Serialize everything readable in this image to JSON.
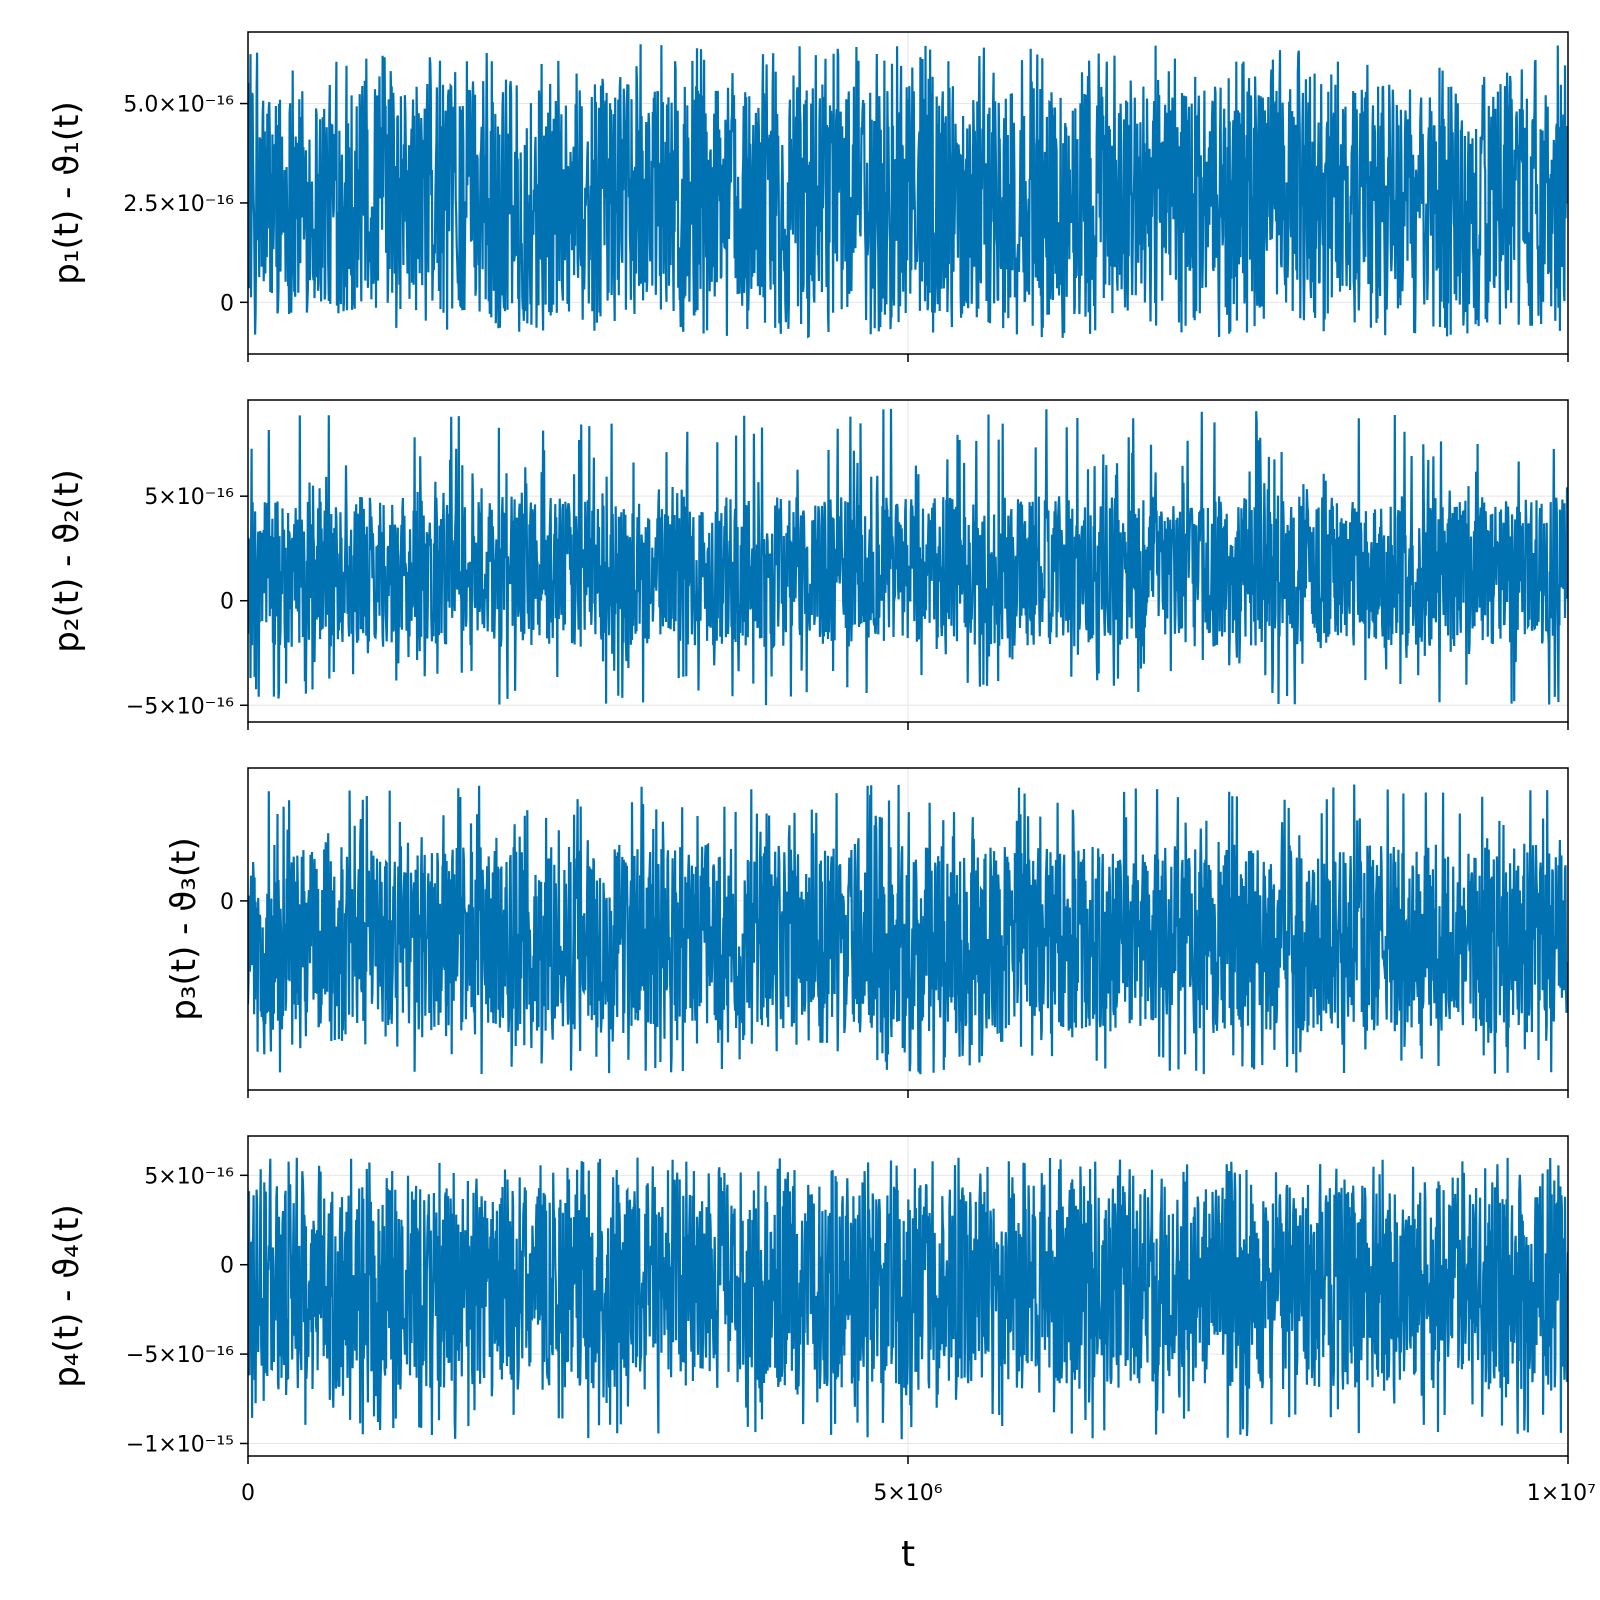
{
  "colors": {
    "series": "#0072b2",
    "grid": "#e6e6e6",
    "frame": "#000000"
  },
  "chart_data": [
    {
      "type": "line",
      "ylabel": "p₁(t) - ϑ₁(t)",
      "xlim": [
        0,
        10000000
      ],
      "ylim": [
        -1.3e-16,
        6.8e-16
      ],
      "yticks": [
        {
          "value": 0,
          "label": "0"
        },
        {
          "value": 2.5e-16,
          "label": "2.5×10⁻¹⁶"
        },
        {
          "value": 5e-16,
          "label": "5.0×10⁻¹⁶"
        }
      ],
      "series": [
        {
          "dense_noise": true,
          "min": -9e-17,
          "max": 6.5e-16,
          "typical_low": -3e-17,
          "typical_high": 5.5e-16
        }
      ],
      "grid": true
    },
    {
      "type": "line",
      "ylabel": "p₂(t) - ϑ₂(t)",
      "xlim": [
        0,
        10000000
      ],
      "ylim": [
        -5.8e-16,
        9.6e-16
      ],
      "yticks": [
        {
          "value": -5e-16,
          "label": "−5×10⁻¹⁶"
        },
        {
          "value": 0,
          "label": "0"
        },
        {
          "value": 5e-16,
          "label": "5×10⁻¹⁶"
        }
      ],
      "series": [
        {
          "dense_noise": true,
          "min": -5e-16,
          "max": 9.2e-16,
          "typical_low": -2.2e-16,
          "typical_high": 5e-16
        }
      ],
      "grid": true
    },
    {
      "type": "line",
      "ylabel": "p₃(t) - ϑ₃(t)",
      "xlim": [
        0,
        10000000
      ],
      "ylim": [
        -1.85e-15,
        1.3e-15
      ],
      "yticks": [
        {
          "value": 0,
          "label": "0"
        }
      ],
      "series": [
        {
          "dense_noise": true,
          "min": -1.72e-15,
          "max": 1.15e-15,
          "typical_low": -1.3e-15,
          "typical_high": 5.5e-16
        }
      ],
      "grid": true
    },
    {
      "type": "line",
      "ylabel": "p₄(t) - ϑ₄(t)",
      "xlabel": "t",
      "xlim": [
        0,
        10000000
      ],
      "ylim": [
        -1.07e-15,
        7.2e-16
      ],
      "yticks": [
        {
          "value": -1e-15,
          "label": "−1×10⁻¹⁵"
        },
        {
          "value": -5e-16,
          "label": "−5×10⁻¹⁶"
        },
        {
          "value": 0,
          "label": "0"
        },
        {
          "value": 5e-16,
          "label": "5×10⁻¹⁶"
        }
      ],
      "xticks": [
        {
          "value": 0,
          "label": "0"
        },
        {
          "value": 5000000,
          "label": "5×10⁶"
        },
        {
          "value": 10000000,
          "label": "1×10⁷"
        }
      ],
      "series": [
        {
          "dense_noise": true,
          "min": -9.8e-16,
          "max": 6e-16,
          "typical_low": -7e-16,
          "typical_high": 4.5e-16
        }
      ],
      "grid": true
    }
  ]
}
